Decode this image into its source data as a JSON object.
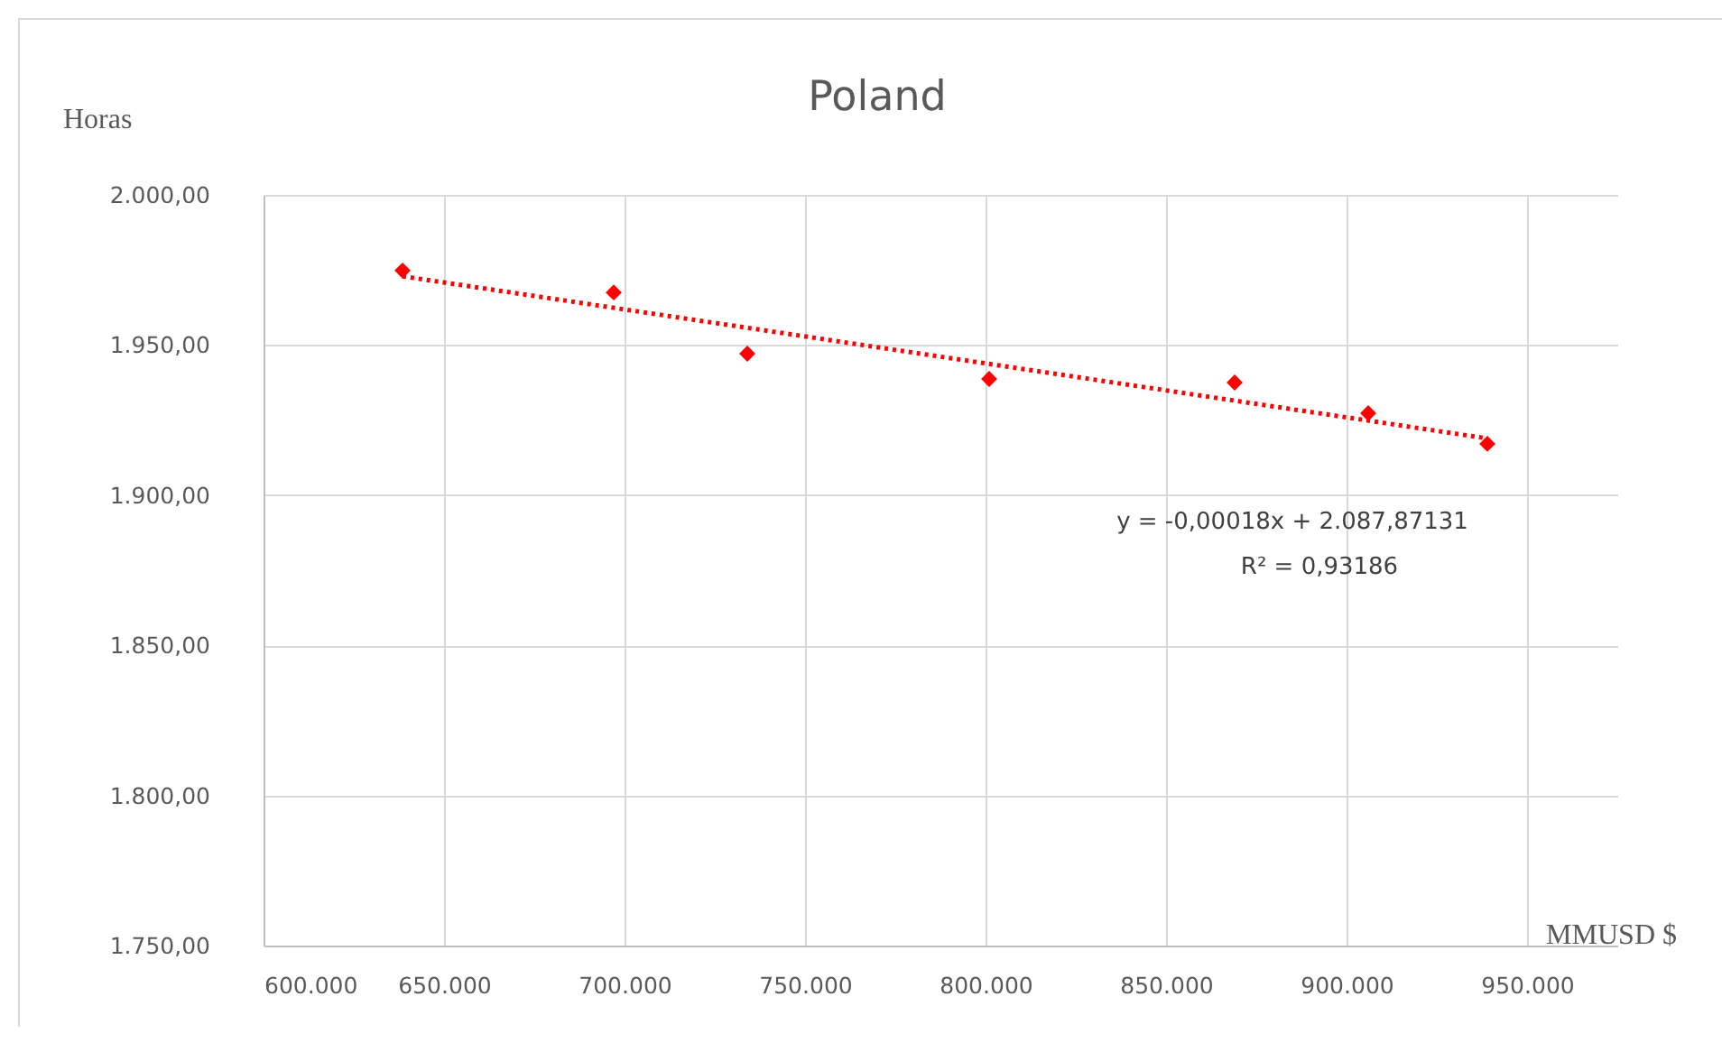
{
  "chart_data": {
    "type": "scatter",
    "title": "Poland",
    "xlabel": "MMUSD $",
    "ylabel": "Horas",
    "annotations": [
      "y = -0,00018x + 2.087,87131",
      "R² = 0,93186"
    ],
    "series": [
      {
        "color": "#ff0000",
        "marker": "diamond",
        "x": [
          638500,
          697000,
          734000,
          801000,
          869000,
          906000,
          939000
        ],
        "values": [
          1974.8,
          1967.5,
          1947.1,
          1938.7,
          1937.5,
          1927.3,
          1917.1
        ]
      },
      {
        "type": "line",
        "color": "#ff0000",
        "line_style": "dotted",
        "marker": "none",
        "x": [
          638500,
          939000
        ],
        "values": [
          1972.9,
          1918.9
        ]
      }
    ],
    "xlim": [
      600000,
      975000
    ],
    "xticks": [
      {
        "value": 600000,
        "label": "600.000"
      },
      {
        "value": 650000,
        "label": "650.000"
      },
      {
        "value": 700000,
        "label": "700.000"
      },
      {
        "value": 750000,
        "label": "750.000"
      },
      {
        "value": 800000,
        "label": "800.000"
      },
      {
        "value": 850000,
        "label": "850.000"
      },
      {
        "value": 900000,
        "label": "900.000"
      },
      {
        "value": 950000,
        "label": "950.000"
      }
    ],
    "ylim": [
      1750,
      2000
    ],
    "yticks": [
      {
        "value": 1750,
        "label": "1.750,00"
      },
      {
        "value": 1800,
        "label": "1.800,00"
      },
      {
        "value": 1850,
        "label": "1.850,00"
      },
      {
        "value": 1900,
        "label": "1.900,00"
      },
      {
        "value": 1950,
        "label": "1.950,00"
      },
      {
        "value": 2000,
        "label": "2.000,00"
      }
    ],
    "grid": true
  }
}
